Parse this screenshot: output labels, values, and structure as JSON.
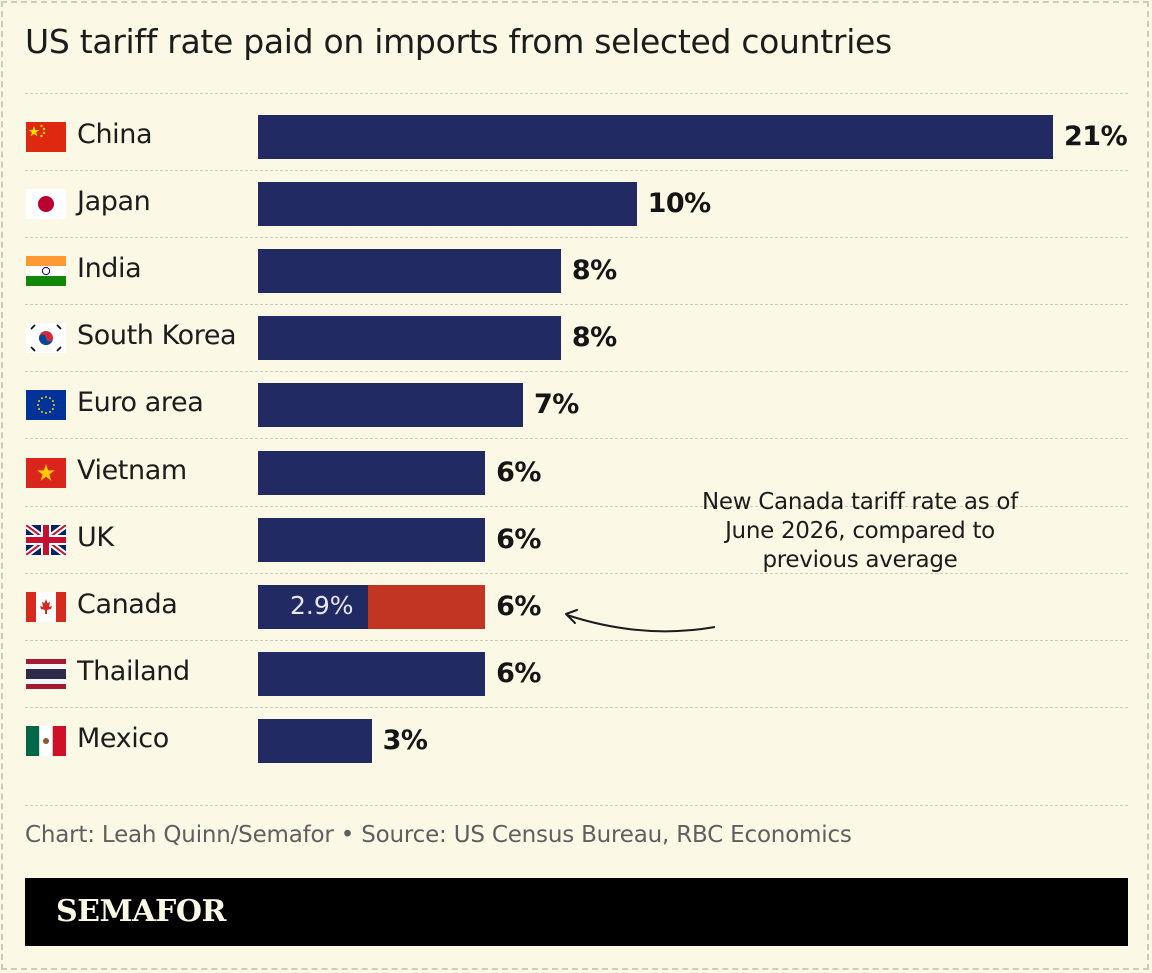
{
  "title": "US tariff rate paid on imports from selected countries",
  "chart_data": {
    "type": "bar",
    "orientation": "horizontal",
    "title": "US tariff rate paid on imports from selected countries",
    "xlim": [
      0,
      21
    ],
    "grid": false,
    "categories": [
      "China",
      "Japan",
      "India",
      "South Korea",
      "Euro area",
      "Vietnam",
      "UK",
      "Canada",
      "Thailand",
      "Mexico"
    ],
    "values": [
      21,
      10,
      8,
      8,
      7,
      6,
      6,
      6,
      6,
      3
    ],
    "value_labels": [
      "21%",
      "10%",
      "8%",
      "8%",
      "7%",
      "6%",
      "6%",
      "6%",
      "6%",
      "3%"
    ],
    "canada_previous": {
      "value": 2.9,
      "label": "2.9%"
    },
    "annotation": "New Canada tariff rate as of June 2026, compared to previous average",
    "colors": {
      "bar": "#222a63",
      "highlight": "#c23523"
    }
  },
  "flags": [
    "china-flag-icon",
    "japan-flag-icon",
    "india-flag-icon",
    "south-korea-flag-icon",
    "eu-flag-icon",
    "vietnam-flag-icon",
    "uk-flag-icon",
    "canada-flag-icon",
    "thailand-flag-icon",
    "mexico-flag-icon"
  ],
  "source": "Chart: Leah Quinn/Semafor • Source: US Census Bureau, RBC Economics",
  "brand": "SEMAFOR",
  "colors": {
    "background": "#fbf8e6",
    "footer": "#000000"
  }
}
